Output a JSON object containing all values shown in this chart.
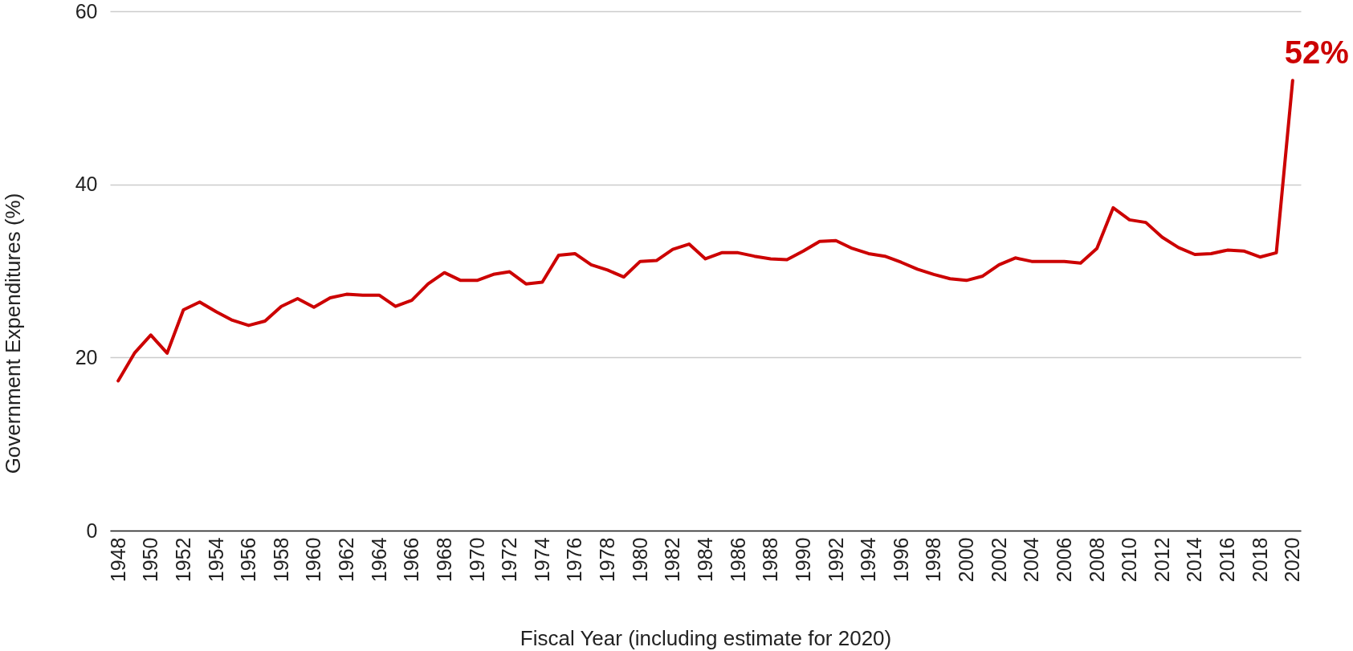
{
  "chart_data": {
    "type": "line",
    "xlabel": "Fiscal Year (including estimate for 2020)",
    "ylabel": "Government Expenditures (%)",
    "x": [
      1948,
      1949,
      1950,
      1951,
      1952,
      1953,
      1954,
      1955,
      1956,
      1957,
      1958,
      1959,
      1960,
      1961,
      1962,
      1963,
      1964,
      1965,
      1966,
      1967,
      1968,
      1969,
      1970,
      1971,
      1972,
      1973,
      1974,
      1975,
      1976,
      1977,
      1978,
      1979,
      1980,
      1981,
      1982,
      1983,
      1984,
      1985,
      1986,
      1987,
      1988,
      1989,
      1990,
      1991,
      1992,
      1993,
      1994,
      1995,
      1996,
      1997,
      1998,
      1999,
      2000,
      2001,
      2002,
      2003,
      2004,
      2005,
      2006,
      2007,
      2008,
      2009,
      2010,
      2011,
      2012,
      2013,
      2014,
      2015,
      2016,
      2017,
      2018,
      2019,
      2020
    ],
    "series": [
      {
        "color": "#cc0000",
        "values": [
          17.3,
          20.5,
          22.6,
          20.5,
          25.5,
          26.4,
          25.3,
          24.3,
          23.7,
          24.2,
          25.9,
          26.8,
          25.8,
          26.9,
          27.3,
          27.2,
          27.2,
          25.9,
          26.6,
          28.5,
          29.8,
          28.9,
          28.9,
          29.6,
          29.9,
          28.5,
          28.7,
          31.8,
          32.0,
          30.7,
          30.1,
          29.3,
          31.1,
          31.2,
          32.5,
          33.1,
          31.4,
          32.1,
          32.1,
          31.7,
          31.4,
          31.3,
          32.3,
          33.4,
          33.5,
          32.6,
          32.0,
          31.7,
          31.0,
          30.2,
          29.6,
          29.1,
          28.9,
          29.4,
          30.7,
          31.5,
          31.1,
          31.1,
          31.1,
          30.9,
          32.6,
          37.3,
          35.9,
          35.6,
          33.9,
          32.7,
          31.9,
          32.0,
          32.4,
          32.3,
          31.6,
          32.1,
          52
        ],
        "value_labels": [
          null,
          null,
          null,
          null,
          null,
          null,
          null,
          null,
          null,
          null,
          null,
          null,
          null,
          null,
          null,
          null,
          null,
          null,
          null,
          null,
          null,
          null,
          null,
          null,
          null,
          null,
          null,
          null,
          null,
          null,
          null,
          null,
          null,
          null,
          null,
          null,
          null,
          null,
          null,
          null,
          null,
          null,
          null,
          null,
          null,
          null,
          null,
          null,
          null,
          null,
          null,
          null,
          null,
          null,
          null,
          null,
          null,
          null,
          null,
          null,
          null,
          null,
          null,
          null,
          null,
          null,
          null,
          null,
          null,
          null,
          null,
          null,
          "52%"
        ]
      }
    ],
    "xlim": [
      1947.5,
      2020.5
    ],
    "xticks": [
      1948,
      1950,
      1952,
      1954,
      1956,
      1958,
      1960,
      1962,
      1964,
      1966,
      1968,
      1970,
      1972,
      1974,
      1976,
      1978,
      1980,
      1982,
      1984,
      1986,
      1988,
      1990,
      1992,
      1994,
      1996,
      1998,
      2000,
      2002,
      2004,
      2006,
      2008,
      2010,
      2012,
      2014,
      2016,
      2018,
      2020
    ],
    "ylim": [
      0,
      60
    ],
    "yticks": [
      0,
      20,
      40,
      60
    ],
    "grid": "y"
  }
}
